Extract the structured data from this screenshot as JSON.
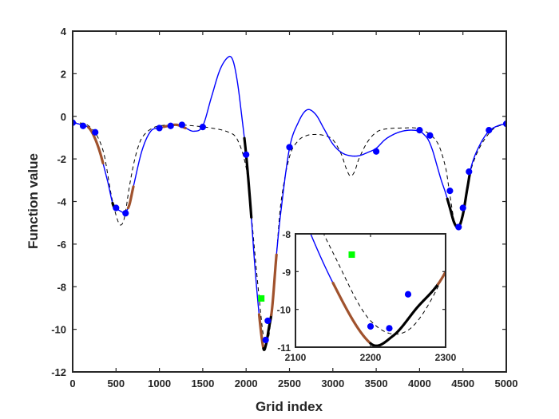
{
  "chart_data": {
    "type": "line",
    "title": "",
    "xlabel": "Grid index",
    "ylabel": "Function value",
    "xlim": [
      0,
      5000
    ],
    "ylim": [
      -12,
      4
    ],
    "x_ticks": [
      0,
      500,
      1000,
      1500,
      2000,
      2500,
      3000,
      3500,
      4000,
      4500,
      5000
    ],
    "y_ticks": [
      -12,
      -10,
      -8,
      -6,
      -4,
      -2,
      0,
      2,
      4
    ],
    "grid": false,
    "legend": "none",
    "colors": {
      "blue_curve": "#0000ff",
      "dashed_curve": "#000000",
      "points": "#0000ff",
      "highlight_brown": "#a0522d",
      "highlight_black": "#000000",
      "marker_green": "#00ff00"
    },
    "series": [
      {
        "style": "solid-blue",
        "x": [
          0,
          100,
          200,
          300,
          400,
          470,
          530,
          600,
          650,
          700,
          800,
          900,
          1000,
          1100,
          1200,
          1300,
          1400,
          1500,
          1600,
          1700,
          1800,
          1850,
          1900,
          1950,
          2000,
          2050,
          2100,
          2150,
          2200,
          2230,
          2260,
          2300,
          2350,
          2400,
          2500,
          2600,
          2700,
          2800,
          2900,
          3000,
          3100,
          3200,
          3300,
          3400,
          3500,
          3600,
          3700,
          3800,
          3900,
          4000,
          4050,
          4100,
          4150,
          4200,
          4250,
          4300,
          4350,
          4400,
          4450,
          4500,
          4550,
          4600,
          4700,
          4800,
          4900,
          5000
        ],
        "y": [
          -0.3,
          -0.4,
          -0.6,
          -1.5,
          -3.0,
          -4.2,
          -4.4,
          -4.5,
          -4.2,
          -3.3,
          -1.6,
          -0.7,
          -0.55,
          -0.45,
          -0.4,
          -0.55,
          -0.7,
          -0.45,
          0.9,
          2.2,
          2.8,
          2.6,
          1.6,
          0.0,
          -1.8,
          -4.2,
          -7.0,
          -9.3,
          -10.9,
          -10.7,
          -10.0,
          -9.0,
          -6.5,
          -4.5,
          -1.5,
          -0.3,
          0.3,
          0.1,
          -0.6,
          -1.3,
          -1.7,
          -1.85,
          -1.85,
          -1.7,
          -1.5,
          -1.1,
          -0.85,
          -0.7,
          -0.65,
          -0.7,
          -0.85,
          -1.1,
          -1.6,
          -2.3,
          -3.0,
          -3.6,
          -4.3,
          -5.0,
          -5.2,
          -4.6,
          -3.4,
          -2.3,
          -1.3,
          -0.7,
          -0.45,
          -0.35
        ]
      },
      {
        "style": "dashed-black",
        "x": [
          0,
          200,
          350,
          450,
          520,
          560,
          600,
          650,
          700,
          750,
          800,
          900,
          1000,
          1200,
          1400,
          1600,
          1800,
          1900,
          2000,
          2050,
          2100,
          2150,
          2200,
          2250,
          2300,
          2350,
          2400,
          2500,
          2600,
          2700,
          2800,
          2900,
          3000,
          3100,
          3150,
          3200,
          3250,
          3300,
          3400,
          3500,
          3600,
          3800,
          4000,
          4200,
          4300,
          4350,
          4400,
          4450,
          4500,
          4600,
          4800,
          5000
        ],
        "y": [
          -0.3,
          -0.5,
          -1.6,
          -3.8,
          -4.9,
          -5.1,
          -4.7,
          -3.4,
          -2.3,
          -1.5,
          -1.0,
          -0.6,
          -0.45,
          -0.4,
          -0.45,
          -0.55,
          -0.75,
          -1.1,
          -2.4,
          -4.2,
          -6.4,
          -8.5,
          -10.3,
          -10.55,
          -9.0,
          -6.5,
          -4.1,
          -1.9,
          -1.15,
          -0.9,
          -0.85,
          -0.9,
          -1.1,
          -1.8,
          -2.4,
          -2.8,
          -2.6,
          -2.0,
          -1.2,
          -0.75,
          -0.6,
          -0.55,
          -0.6,
          -1.2,
          -2.4,
          -3.7,
          -4.9,
          -5.2,
          -4.6,
          -2.4,
          -0.8,
          -0.35
        ]
      }
    ],
    "points": [
      {
        "x": 0,
        "y": -0.3
      },
      {
        "x": 120,
        "y": -0.45
      },
      {
        "x": 260,
        "y": -0.75
      },
      {
        "x": 500,
        "y": -4.3
      },
      {
        "x": 610,
        "y": -4.55
      },
      {
        "x": 1000,
        "y": -0.55
      },
      {
        "x": 1130,
        "y": -0.45
      },
      {
        "x": 1260,
        "y": -0.4
      },
      {
        "x": 1500,
        "y": -0.5
      },
      {
        "x": 2000,
        "y": -1.8
      },
      {
        "x": 2225,
        "y": -10.5
      },
      {
        "x": 2250,
        "y": -9.6
      },
      {
        "x": 2500,
        "y": -1.45
      },
      {
        "x": 3500,
        "y": -1.65
      },
      {
        "x": 4000,
        "y": -0.65
      },
      {
        "x": 4120,
        "y": -0.9
      },
      {
        "x": 4350,
        "y": -3.5
      },
      {
        "x": 4450,
        "y": -5.2
      },
      {
        "x": 4500,
        "y": -4.3
      },
      {
        "x": 4570,
        "y": -2.6
      },
      {
        "x": 4800,
        "y": -0.65
      },
      {
        "x": 5000,
        "y": -0.35
      }
    ],
    "highlight_segments": [
      {
        "color": "brown",
        "x": [
          180,
          350
        ]
      },
      {
        "color": "black",
        "x": [
          460,
          510
        ]
      },
      {
        "color": "brown",
        "x": [
          640,
          700
        ]
      },
      {
        "color": "brown",
        "x": [
          1050,
          1300
        ]
      },
      {
        "color": "black",
        "x": [
          1980,
          2060
        ]
      },
      {
        "color": "brown",
        "x": [
          2150,
          2200
        ]
      },
      {
        "color": "black",
        "x": [
          2200,
          2290
        ]
      },
      {
        "color": "brown",
        "x": [
          2290,
          2350
        ]
      },
      {
        "color": "black",
        "x": [
          4320,
          4580
        ]
      }
    ],
    "green_marker": {
      "x": 2175,
      "y": -8.55
    },
    "inset": {
      "xlim": [
        2100,
        2300
      ],
      "ylim": [
        -11,
        -8
      ],
      "x_ticks": [
        2100,
        2200,
        2300
      ],
      "y_ticks": [
        -11,
        -10,
        -9,
        -8
      ],
      "points": [
        {
          "x": 2200,
          "y": -10.45
        },
        {
          "x": 2225,
          "y": -10.5
        },
        {
          "x": 2250,
          "y": -9.6
        }
      ]
    }
  }
}
